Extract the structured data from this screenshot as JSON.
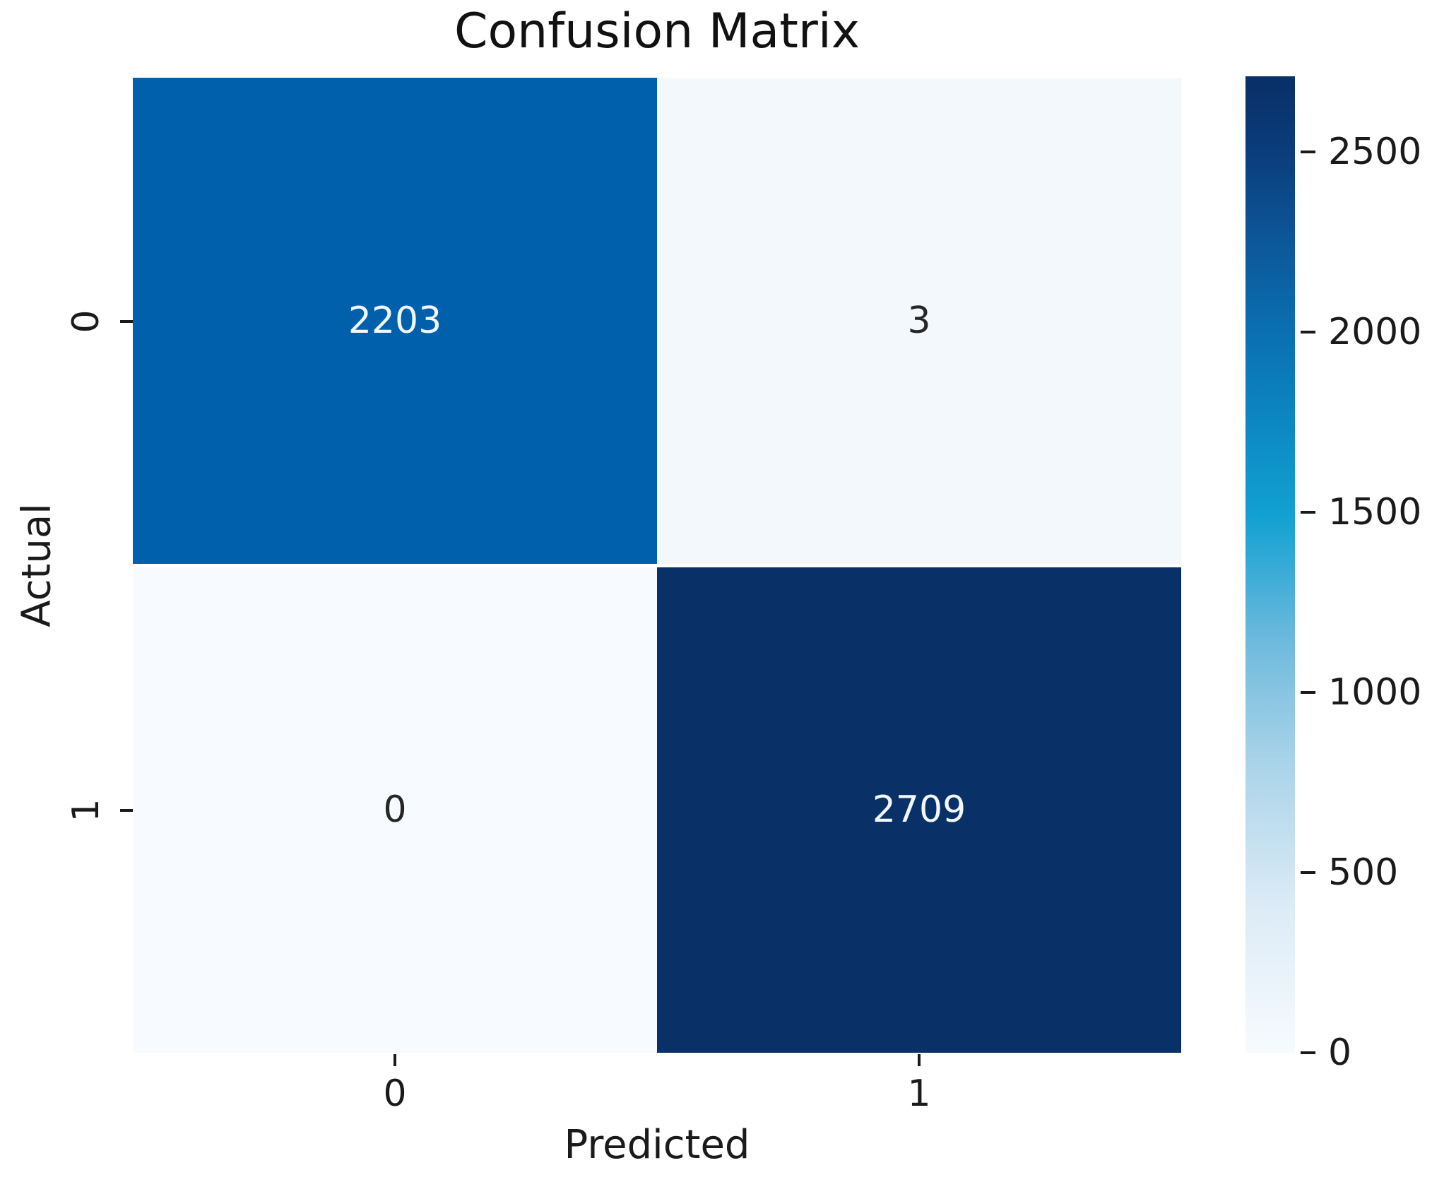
{
  "chart_data": {
    "type": "heatmap",
    "title": "Confusion Matrix",
    "xlabel": "Predicted",
    "ylabel": "Actual",
    "x_tick_labels": [
      "0",
      "1"
    ],
    "y_tick_labels": [
      "0",
      "1"
    ],
    "categories": [
      "0",
      "1"
    ],
    "matrix": [
      [
        2203,
        3
      ],
      [
        0,
        2709
      ]
    ],
    "cell_labels": [
      "2203",
      "3",
      "0",
      "2709"
    ],
    "cell_colors": [
      "#0060ab",
      "#f3f8fd",
      "#f7fbff",
      "#0a3167"
    ],
    "cell_text_colors": [
      "#f2f7fd",
      "#262626",
      "#262626",
      "#f2f7fd"
    ],
    "colormap": "Blues",
    "vmin": 0,
    "vmax": 2709,
    "grid": false,
    "colorbar": {
      "position": "right",
      "ticks": [
        "0",
        "500",
        "1000",
        "1500",
        "2000",
        "2500"
      ],
      "tick_values": [
        0,
        500,
        1000,
        1500,
        2000,
        2500
      ],
      "gradient_stops": [
        "#f7fbff 0%",
        "#dcebf6 15%",
        "#a8d3e8 30%",
        "#6fbadd 42%",
        "#11a1d2 55%",
        "#0c86c1 65%",
        "#0a6fb1 74%",
        "#0c5799 83%",
        "#0b3d7c 92%",
        "#092f66 100%"
      ]
    }
  }
}
